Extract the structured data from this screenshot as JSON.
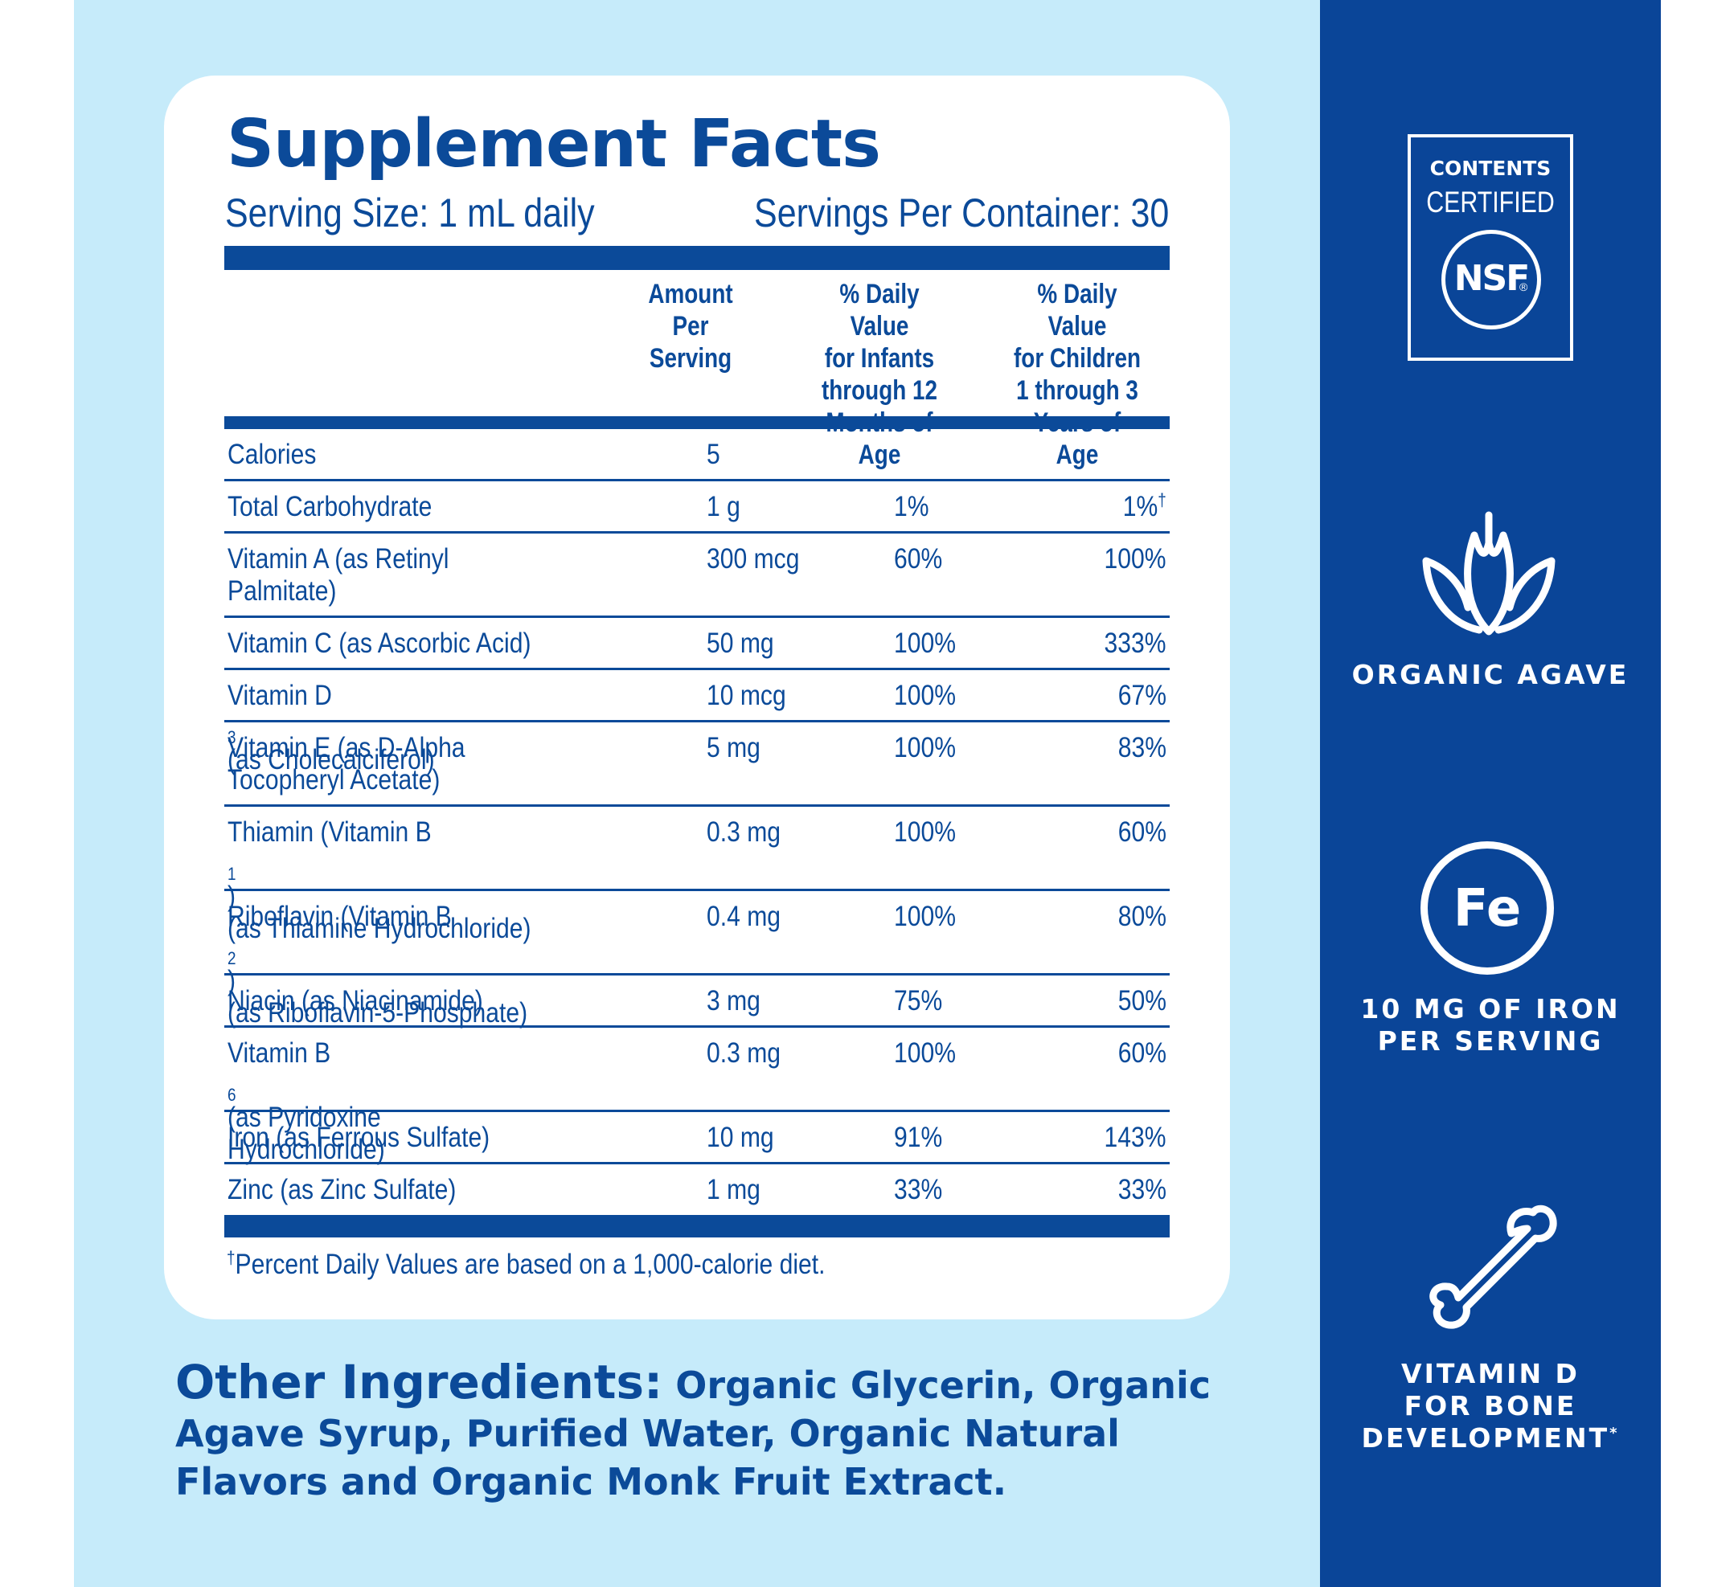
{
  "facts": {
    "title": "Supplement Facts",
    "serving_size": "Serving Size: 1 mL daily",
    "servings_per_container": "Servings Per Container: 30",
    "columns": {
      "amount": [
        "Amount",
        "Per Serving"
      ],
      "infants": [
        "% Daily Value",
        "for Infants",
        "through 12",
        "Months of Age"
      ],
      "children": [
        "% Daily Value",
        "for Children",
        "1 through 3",
        "Years of Age"
      ]
    },
    "rows": [
      {
        "name": [
          "Calories"
        ],
        "amount": "5",
        "infants": "",
        "children": ""
      },
      {
        "name": [
          "Total Carbohydrate"
        ],
        "amount": "1 g",
        "infants": "1%",
        "children": "1%",
        "children_mark": "†"
      },
      {
        "name": [
          "Vitamin A (as Retinyl",
          "Palmitate)"
        ],
        "amount": "300 mcg",
        "infants": "60%",
        "children": "100%"
      },
      {
        "name": [
          "Vitamin C (as Ascorbic Acid)"
        ],
        "amount": "50 mg",
        "infants": "100%",
        "children": "333%"
      },
      {
        "name_pre": "Vitamin D",
        "name_sub": "3",
        "name_post": " (as Cholecalciferol)",
        "amount": "10 mcg",
        "infants": "100%",
        "children": "67%"
      },
      {
        "name": [
          "Vitamin E (as D-Alpha",
          "Tocopheryl Acetate)"
        ],
        "amount": "5 mg",
        "infants": "100%",
        "children": "83%"
      },
      {
        "name_pre": "Thiamin (Vitamin B",
        "name_sub": "1",
        "name_post": ")",
        "name_line2": "(as Thiamine Hydrochloride)",
        "amount": "0.3 mg",
        "infants": "100%",
        "children": "60%"
      },
      {
        "name_pre": "Riboflavin (Vitamin B",
        "name_sub": "2",
        "name_post": ")",
        "name_line2": "(as Riboflavin-5-Phosphate)",
        "amount": "0.4 mg",
        "infants": "100%",
        "children": "80%"
      },
      {
        "name": [
          "Niacin (as Niacinamide)"
        ],
        "amount": "3 mg",
        "infants": "75%",
        "children": "50%"
      },
      {
        "name_pre": "Vitamin B",
        "name_sub": "6",
        "name_post": " (as Pyridoxine",
        "name_line2": "Hydrochloride)",
        "amount": "0.3 mg",
        "infants": "100%",
        "children": "60%"
      },
      {
        "name": [
          "Iron (as Ferrous Sulfate)"
        ],
        "amount": "10 mg",
        "infants": "91%",
        "children": "143%"
      },
      {
        "name": [
          "Zinc (as Zinc Sulfate)"
        ],
        "amount": "1 mg",
        "infants": "33%",
        "children": "33%"
      }
    ],
    "footnote_mark": "†",
    "footnote": "Percent Daily Values are based on a 1,000-calorie diet."
  },
  "other_ingredients": {
    "label": "Other Ingredients:",
    "text": " Organic Glycerin, Organic Agave Syrup, Purified Water, Organic Natural Flavors and Organic Monk Fruit Extract."
  },
  "badges": {
    "nsf": {
      "line1": "CONTENTS",
      "line2": "CERTIFIED",
      "logo": "NSF",
      "reg": "®"
    },
    "agave": {
      "label": "ORGANIC AGAVE",
      "icon": "agave-leaf-icon"
    },
    "iron": {
      "symbol": "Fe",
      "line1": "10 MG OF IRON",
      "line2": "PER SERVING",
      "icon": "iron-circle-icon"
    },
    "bone": {
      "line1": "VITAMIN D",
      "line2": "FOR BONE",
      "line3": "DEVELOPMENT",
      "mark": "*",
      "icon": "bone-icon"
    }
  },
  "colors": {
    "brand_blue": "#0b4a99",
    "panel_blue": "#0a4598",
    "background": "#c6ebfa"
  }
}
